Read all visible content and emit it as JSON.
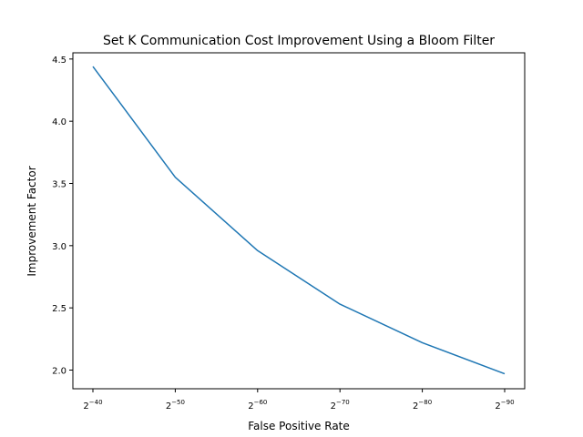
{
  "chart_data": {
    "type": "line",
    "title": "Set K Communication Cost Improvement Using a Bloom Filter",
    "xlabel": "False Positive Rate",
    "ylabel": "Improvement Factor",
    "x_tick_base": "2",
    "x": [
      -40,
      -50,
      -60,
      -70,
      -80,
      -90
    ],
    "x_tick_exponents": [
      "−40",
      "−50",
      "−60",
      "−70",
      "−80",
      "−90"
    ],
    "y_ticks": [
      "2.0",
      "2.5",
      "3.0",
      "3.5",
      "4.0",
      "4.5"
    ],
    "y_tick_values": [
      2.0,
      2.5,
      3.0,
      3.5,
      4.0,
      4.5
    ],
    "ylim": [
      1.85,
      4.55
    ],
    "grid": false,
    "legend": "none",
    "series": [
      {
        "color": "#1f77b4",
        "values": [
          4.44,
          3.55,
          2.96,
          2.53,
          2.22,
          1.97
        ]
      }
    ]
  }
}
